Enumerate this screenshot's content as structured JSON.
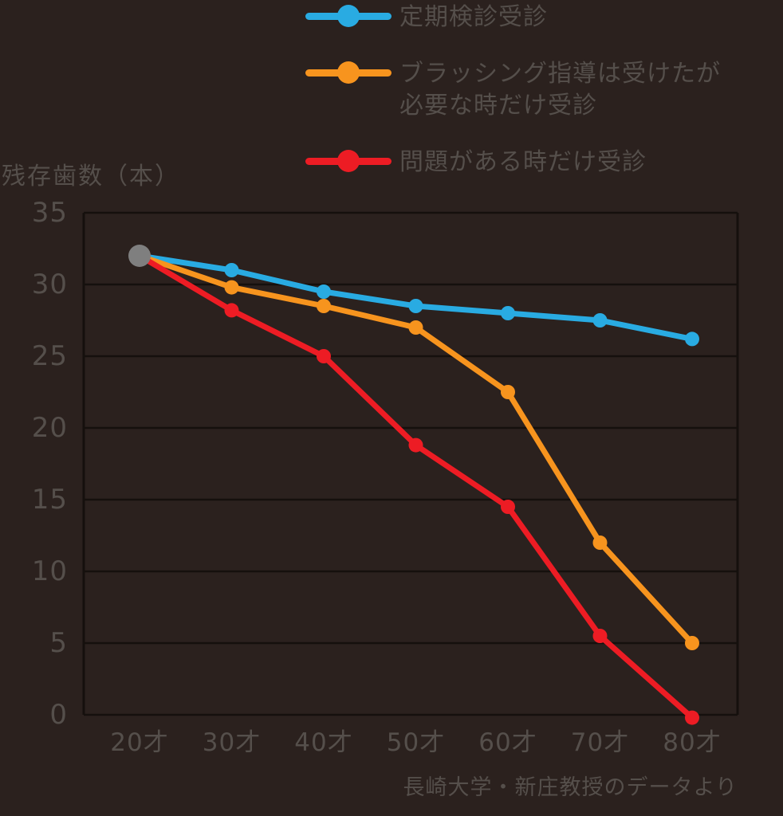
{
  "colors": {
    "background": "#2b211e",
    "text": "#554f4b",
    "grid": "#15100d"
  },
  "legend": {
    "items": [
      {
        "label": "定期検診受診"
      },
      {
        "label": "ブラッシング指導は受けたが\n必要な時だけ受診"
      },
      {
        "label": "問題がある時だけ受診"
      }
    ]
  },
  "chart_data": {
    "type": "line",
    "categories": [
      "20才",
      "30才",
      "40才",
      "50才",
      "60才",
      "70才",
      "80才"
    ],
    "series": [
      {
        "name": "定期検診受診",
        "color": "#29abe2",
        "values": [
          32,
          31,
          29.5,
          28.5,
          28,
          27.5,
          26.2
        ]
      },
      {
        "name": "ブラッシング指導は受けたが必要な時だけ受診",
        "color": "#f7941e",
        "values": [
          32,
          29.8,
          28.5,
          27,
          22.5,
          12,
          5
        ]
      },
      {
        "name": "問題がある時だけ受診",
        "color": "#ed1c24",
        "values": [
          32,
          28.2,
          25,
          18.8,
          14.5,
          5.5,
          -0.2
        ]
      }
    ],
    "start_marker": {
      "category": "20才",
      "value": 32,
      "color": "#7f7f7f"
    },
    "ylabel": "残存歯数（本）",
    "ylim": [
      0,
      35
    ],
    "ytick_step": 5,
    "grid": true,
    "legend_position": "top",
    "source": "長崎大学・新庄教授のデータより"
  }
}
